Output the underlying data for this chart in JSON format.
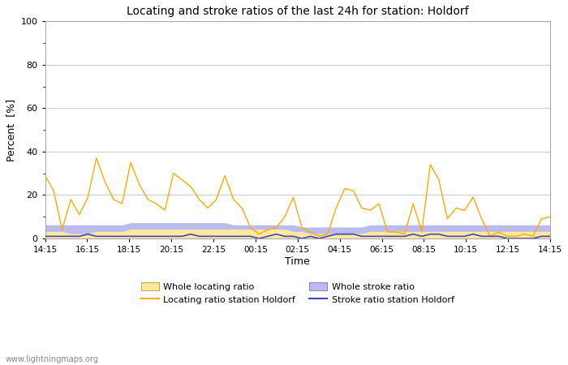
{
  "title": "Locating and stroke ratios of the last 24h for station: Holdorf",
  "xlabel": "Time",
  "ylabel": "Percent  [%]",
  "ylim": [
    0,
    100
  ],
  "yticks": [
    0,
    20,
    40,
    60,
    80,
    100
  ],
  "x_labels": [
    "14:15",
    "16:15",
    "18:15",
    "20:15",
    "22:15",
    "00:15",
    "02:15",
    "04:15",
    "06:15",
    "08:15",
    "10:15",
    "12:15",
    "14:15"
  ],
  "background_color": "#ffffff",
  "plot_bg_color": "#ffffff",
  "grid_color": "#cccccc",
  "watermark": "www.lightningmaps.org",
  "locating_line_color": "#ffaa00",
  "locating_fill_color": "#ffe8a0",
  "stroke_line_color": "#4444bb",
  "stroke_fill_color": "#bbbbee",
  "locating_ratio": [
    29,
    22,
    4,
    18,
    11,
    19,
    37,
    26,
    18,
    16,
    35,
    25,
    18,
    16,
    13,
    30,
    27,
    24,
    18,
    14,
    18,
    29,
    18,
    14,
    5,
    2,
    4,
    5,
    10,
    19,
    5,
    3,
    1,
    2,
    14,
    23,
    22,
    14,
    13,
    16,
    3,
    3,
    2,
    16,
    3,
    34,
    27,
    9,
    14,
    13,
    19,
    9,
    1,
    3,
    1,
    1,
    2,
    1,
    9,
    10
  ],
  "stroke_ratio": [
    1,
    1,
    1,
    1,
    1,
    2,
    1,
    1,
    1,
    1,
    1,
    1,
    1,
    1,
    1,
    1,
    1,
    2,
    1,
    1,
    1,
    1,
    1,
    1,
    1,
    0,
    1,
    2,
    1,
    1,
    0,
    1,
    0,
    1,
    2,
    2,
    2,
    1,
    1,
    1,
    1,
    1,
    1,
    2,
    1,
    2,
    2,
    1,
    1,
    1,
    2,
    1,
    1,
    1,
    0,
    0,
    0,
    0,
    1,
    1
  ],
  "whole_locating": [
    3,
    3,
    3,
    2,
    2,
    2,
    3,
    3,
    3,
    3,
    4,
    4,
    4,
    4,
    4,
    4,
    4,
    4,
    4,
    4,
    4,
    4,
    4,
    4,
    4,
    4,
    4,
    4,
    4,
    3,
    3,
    2,
    2,
    2,
    2,
    2,
    2,
    2,
    3,
    3,
    3,
    3,
    3,
    3,
    3,
    3,
    3,
    3,
    3,
    3,
    3,
    3,
    3,
    3,
    3,
    3,
    3,
    3,
    3,
    3
  ],
  "whole_stroke": [
    6,
    6,
    6,
    6,
    6,
    6,
    6,
    6,
    6,
    6,
    7,
    7,
    7,
    7,
    7,
    7,
    7,
    7,
    7,
    7,
    7,
    7,
    6,
    6,
    6,
    6,
    6,
    6,
    6,
    6,
    5,
    5,
    5,
    5,
    5,
    5,
    5,
    5,
    6,
    6,
    6,
    6,
    6,
    6,
    6,
    6,
    6,
    6,
    6,
    6,
    6,
    6,
    6,
    6,
    6,
    6,
    6,
    6,
    6,
    6
  ]
}
